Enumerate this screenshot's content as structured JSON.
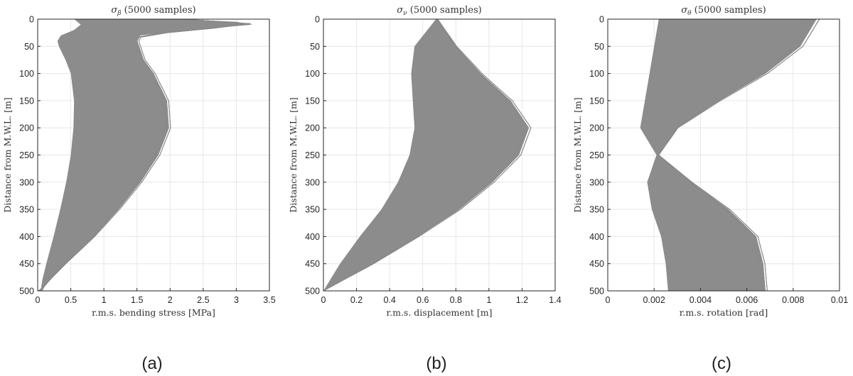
{
  "chart_data": [
    {
      "type": "line",
      "panel_label": "(a)",
      "title_symbol": "σ",
      "title_subscript": "β",
      "title_rest": " (5000 samples)",
      "xlabel": "r.m.s. bending stress [MPa]",
      "ylabel": "Distance from M.W.L. [m]",
      "xlim": [
        0,
        3.5
      ],
      "ylim": [
        0,
        500
      ],
      "y_reversed": true,
      "grid": true,
      "xticks": [
        "0",
        "0.5",
        "1",
        "1.5",
        "2",
        "2.5",
        "3",
        "3.5"
      ],
      "yticks": [
        "0",
        "50",
        "100",
        "150",
        "200",
        "250",
        "300",
        "350",
        "400",
        "450",
        "500"
      ],
      "color": "#8c8c8c",
      "samples": 5000,
      "envelope_depth": [
        0,
        5,
        10,
        20,
        30,
        40,
        50,
        75,
        100,
        150,
        200,
        250,
        300,
        350,
        400,
        450,
        480,
        495,
        500
      ],
      "envelope_min": [
        0.55,
        0.6,
        0.65,
        0.55,
        0.35,
        0.3,
        0.32,
        0.42,
        0.5,
        0.55,
        0.54,
        0.5,
        0.43,
        0.34,
        0.24,
        0.13,
        0.07,
        0.05,
        0.0
      ],
      "envelope_max": [
        2.2,
        3.0,
        3.25,
        2.3,
        1.55,
        1.5,
        1.53,
        1.6,
        1.75,
        1.95,
        1.98,
        1.82,
        1.55,
        1.22,
        0.85,
        0.42,
        0.18,
        0.08,
        0.06
      ]
    },
    {
      "type": "line",
      "panel_label": "(b)",
      "title_symbol": "σ",
      "title_subscript": "ν",
      "title_rest": " (5000 samples)",
      "xlabel": "r.m.s. displacement [m]",
      "ylabel": "Distance from M.W.L. [m]",
      "xlim": [
        0,
        1.4
      ],
      "ylim": [
        0,
        500
      ],
      "y_reversed": true,
      "grid": true,
      "xticks": [
        "0",
        "0.2",
        "0.4",
        "0.6",
        "0.8",
        "1",
        "1.2",
        "1.4"
      ],
      "yticks": [
        "0",
        "50",
        "100",
        "150",
        "200",
        "250",
        "300",
        "350",
        "400",
        "450",
        "500"
      ],
      "color": "#8c8c8c",
      "samples": 5000,
      "envelope_depth": [
        0,
        50,
        100,
        150,
        200,
        250,
        300,
        350,
        400,
        450,
        500
      ],
      "envelope_min": [
        0.68,
        0.55,
        0.53,
        0.54,
        0.55,
        0.52,
        0.45,
        0.35,
        0.22,
        0.1,
        0.0
      ],
      "envelope_max": [
        0.69,
        0.8,
        0.95,
        1.13,
        1.24,
        1.18,
        1.02,
        0.82,
        0.57,
        0.3,
        0.0
      ]
    },
    {
      "type": "line",
      "panel_label": "(c)",
      "title_symbol": "σ",
      "title_subscript": "θ",
      "title_rest": " (5000 samples)",
      "xlabel": "r.m.s. rotation [rad]",
      "ylabel": "Distance from M.W.L. [m]",
      "xlim": [
        0,
        0.01
      ],
      "ylim": [
        0,
        500
      ],
      "y_reversed": true,
      "grid": true,
      "xticks": [
        "0",
        "0.002",
        "0.004",
        "0.006",
        "0.008",
        "0.01"
      ],
      "yticks": [
        "0",
        "50",
        "100",
        "150",
        "200",
        "250",
        "300",
        "350",
        "400",
        "450",
        "500"
      ],
      "color": "#8c8c8c",
      "samples": 5000,
      "envelope_depth": [
        0,
        50,
        100,
        150,
        200,
        250,
        300,
        350,
        400,
        450,
        500
      ],
      "envelope_min": [
        0.0022,
        0.002,
        0.0018,
        0.0016,
        0.0014,
        0.0021,
        0.0017,
        0.0019,
        0.0023,
        0.0025,
        0.0026
      ],
      "envelope_max": [
        0.009,
        0.0083,
        0.0068,
        0.0048,
        0.003,
        0.0022,
        0.0036,
        0.0052,
        0.0064,
        0.0067,
        0.0068
      ]
    }
  ]
}
